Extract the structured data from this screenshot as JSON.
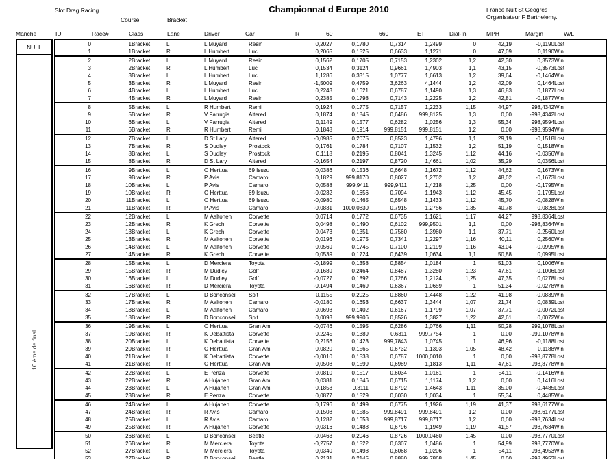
{
  "header": {
    "app_title": "Slot Drag Racing",
    "course_label": "Course",
    "bracket_label": "Bracket",
    "title": "Championnat d Europe 2010",
    "event_location": "France Nuit St Geogres",
    "organiser": "Organisateur F Barthelemy."
  },
  "manche": {
    "header": "Manche",
    "null_label": "NULL",
    "round_label": "16 ème de final"
  },
  "table": {
    "headers": [
      "ID",
      "Race#",
      "Class",
      "Lane",
      "Driver",
      "Car",
      "RT",
      "60",
      "660",
      "ET",
      "Dial-In",
      "MPH",
      "Margin",
      "W/L"
    ],
    "groups": [
      [
        [
          "0",
          "1",
          "Bracket",
          "L",
          "L Muyard",
          "Resin",
          "0,2027",
          "0,1780",
          "0,7314",
          "1,2499",
          "0",
          "42,19",
          "-0,1190",
          "Lost"
        ],
        [
          "1",
          "1",
          "Bracket",
          "R",
          "L Humbert",
          "Luc",
          "0,2065",
          "0,1525",
          "0,6633",
          "1,1271",
          "0",
          "47,09",
          "0,1190",
          "Win"
        ]
      ],
      [
        [
          "2",
          "2",
          "Bracket",
          "L",
          "L Muyard",
          "Resin",
          "0,1562",
          "0,1705",
          "0,7153",
          "1,2302",
          "1,2",
          "42,30",
          "0,3573",
          "Win"
        ],
        [
          "3",
          "2",
          "Bracket",
          "R",
          "L Humbert",
          "Luc",
          "0,1534",
          "0,3124",
          "0,9661",
          "1,4903",
          "1,1",
          "43,15",
          "-0,3573",
          "Lost"
        ],
        [
          "4",
          "3",
          "Bracket",
          "L",
          "L Humbert",
          "Luc",
          "1,1286",
          "0,3315",
          "1,0777",
          "1,6613",
          "1,2",
          "39,64",
          "-0,1464",
          "Win"
        ],
        [
          "5",
          "3",
          "Bracket",
          "R",
          "L Muyard",
          "Resin",
          "-1,5009",
          "0,4759",
          "3,6263",
          "4,1444",
          "1,2",
          "42,09",
          "0,1464",
          "Lost"
        ],
        [
          "6",
          "4",
          "Bracket",
          "L",
          "L Humbert",
          "Luc",
          "0,2243",
          "0,1621",
          "0,6787",
          "1,1490",
          "1,3",
          "46,83",
          "0,1877",
          "Lost"
        ],
        [
          "7",
          "4",
          "Bracket",
          "R",
          "L Muyard",
          "Resin",
          "0,2385",
          "0,1798",
          "0,7143",
          "1,2225",
          "1,2",
          "42,81",
          "-0,1877",
          "Win"
        ]
      ],
      [
        [
          "8",
          "5",
          "Bracket",
          "L",
          "R Humbert",
          "Remi",
          "0,1924",
          "0,1775",
          "0,7157",
          "1,2233",
          "1,15",
          "44,97",
          "998,4342",
          "Win"
        ],
        [
          "9",
          "5",
          "Bracket",
          "R",
          "V Farrugia",
          "Altered",
          "0,1874",
          "0,1845",
          "0,6486",
          "999,8125",
          "1,3",
          "0,00",
          "-998,4342",
          "Lost"
        ],
        [
          "10",
          "6",
          "Bracket",
          "L",
          "V Farrugia",
          "Altered",
          "0,1149",
          "0,1577",
          "0,6282",
          "1,0256",
          "1,3",
          "55,34",
          "998,9594",
          "Lost"
        ],
        [
          "11",
          "6",
          "Bracket",
          "R",
          "R Humbert",
          "Remi",
          "0,1848",
          "0,1914",
          "999,8151",
          "999,8151",
          "1,2",
          "0,00",
          "-998,9594",
          "Win"
        ]
      ],
      [
        [
          "12",
          "7",
          "Bracket",
          "L",
          "D St Lary",
          "Altered",
          "-0,0985",
          "0,2075",
          "0,8523",
          "1,4796",
          "1,1",
          "29,19",
          "-0,1518",
          "Lost"
        ],
        [
          "13",
          "7",
          "Bracket",
          "R",
          "S Dudley",
          "Prostock",
          "0,1761",
          "0,1784",
          "0,7107",
          "1,1532",
          "1,2",
          "51,19",
          "0,1518",
          "Win"
        ],
        [
          "14",
          "8",
          "Bracket",
          "L",
          "S Dudley",
          "Prostock",
          "0,1118",
          "0,2195",
          "0,8041",
          "1,3245",
          "1,12",
          "44,16",
          "-0,0356",
          "Win"
        ],
        [
          "15",
          "8",
          "Bracket",
          "R",
          "D St Lary",
          "Altered",
          "-0,1654",
          "0,2197",
          "0,8720",
          "1,4661",
          "1,02",
          "35,29",
          "0,0356",
          "Lost"
        ]
      ],
      [
        [
          "16",
          "9",
          "Bracket",
          "L",
          "O Herttua",
          "69 Isuzu",
          "0,0386",
          "0,1536",
          "0,6648",
          "1,1672",
          "1,12",
          "44,62",
          "0,1673",
          "Win"
        ],
        [
          "17",
          "9",
          "Bracket",
          "R",
          "P Avis",
          "Camaro",
          "0,1829",
          "999,8170",
          "0,8027",
          "1,2702",
          "1,2",
          "48,02",
          "-0,1673",
          "Lost"
        ],
        [
          "18",
          "10",
          "Bracket",
          "L",
          "P Avis",
          "Camaro",
          "0,0588",
          "999,9411",
          "999,9411",
          "1,4218",
          "1,25",
          "0,00",
          "-0,1795",
          "Win"
        ],
        [
          "19",
          "10",
          "Bracket",
          "R",
          "O Herttua",
          "69 Isuzu",
          "-0,0232",
          "0,1656",
          "0,7094",
          "1,1943",
          "1,12",
          "45,45",
          "0,1795",
          "Lost"
        ],
        [
          "20",
          "11",
          "Bracket",
          "L",
          "O Herttua",
          "69 Isuzu",
          "-0,0980",
          "0,1465",
          "0,6548",
          "1,1433",
          "1,12",
          "45,70",
          "-0,0828",
          "Win"
        ],
        [
          "21",
          "11",
          "Bracket",
          "R",
          "P Avis",
          "Camaro",
          "-0,0831",
          "1000,0830",
          "0,7915",
          "1,2756",
          "1,35",
          "40,78",
          "0,0828",
          "Lost"
        ]
      ],
      [
        [
          "22",
          "12",
          "Bracket",
          "L",
          "M Aaltonen",
          "Corvette",
          "0,0714",
          "0,1772",
          "0,6735",
          "1,1621",
          "1,17",
          "44,27",
          "998,8364",
          "Lost"
        ],
        [
          "23",
          "12",
          "Bracket",
          "R",
          "K Grech",
          "Corvette",
          "0,0498",
          "0,1490",
          "0,6102",
          "999,9501",
          "1,1",
          "0,00",
          "-998,8364",
          "Win"
        ],
        [
          "24",
          "13",
          "Bracket",
          "L",
          "K Grech",
          "Corvette",
          "0,0473",
          "0,1351",
          "0,7560",
          "1,3980",
          "1,1",
          "37,71",
          "-0,2560",
          "Lost"
        ],
        [
          "25",
          "13",
          "Bracket",
          "R",
          "M Aaltonen",
          "Corvette",
          "0,0196",
          "0,1975",
          "0,7341",
          "1,2297",
          "1,16",
          "40,11",
          "0,2560",
          "Win"
        ],
        [
          "26",
          "14",
          "Bracket",
          "L",
          "M Aaltonen",
          "Corvette",
          "0,0569",
          "0,1745",
          "0,7100",
          "1,2199",
          "1,16",
          "43,04",
          "-0,0995",
          "Win"
        ],
        [
          "27",
          "14",
          "Bracket",
          "R",
          "K Grech",
          "Corvette",
          "0,0539",
          "0,1724",
          "0,6439",
          "1,0634",
          "1,1",
          "50,88",
          "0,0995",
          "Lost"
        ]
      ],
      [
        [
          "28",
          "15",
          "Bracket",
          "L",
          "D Merciera",
          "Toyota",
          "-0,1899",
          "0,1358",
          "0,5854",
          "1,0184",
          "1",
          "51,03",
          "0,1006",
          "Win"
        ],
        [
          "29",
          "15",
          "Bracket",
          "R",
          "M Dudley",
          "Golf",
          "-0,1689",
          "0,2464",
          "0,8487",
          "1,3280",
          "1,23",
          "47,61",
          "-0,1006",
          "Lost"
        ],
        [
          "30",
          "16",
          "Bracket",
          "L",
          "M Dudley",
          "Golf",
          "-0,0727",
          "0,1892",
          "0,7266",
          "1,2124",
          "1,25",
          "47,35",
          "0,0278",
          "Lost"
        ],
        [
          "31",
          "16",
          "Bracket",
          "R",
          "D Merciera",
          "Toyota",
          "-0,1494",
          "0,1469",
          "0,6367",
          "1,0659",
          "1",
          "51,34",
          "-0,0278",
          "Win"
        ]
      ],
      [
        [
          "32",
          "17",
          "Bracket",
          "L",
          "D Bonconseil",
          "Spit",
          "0,1155",
          "0,2025",
          "0,8860",
          "1,4448",
          "1,22",
          "41,98",
          "-0,0839",
          "Win"
        ],
        [
          "33",
          "17",
          "Bracket",
          "R",
          "M Aaltonen",
          "Camaro",
          "-0,0180",
          "0,1653",
          "0,6637",
          "1,3444",
          "1,07",
          "21,74",
          "0,0839",
          "Lost"
        ],
        [
          "34",
          "18",
          "Bracket",
          "L",
          "M Aaltonen",
          "Camaro",
          "0,0693",
          "0,1402",
          "0,6167",
          "1,1799",
          "1,07",
          "37,71",
          "-0,0072",
          "Lost"
        ],
        [
          "35",
          "18",
          "Bracket",
          "R",
          "D Bonconseil",
          "Spit",
          "0,0093",
          "999,9906",
          "0,8526",
          "1,3827",
          "1,22",
          "42,61",
          "0,0072",
          "Win"
        ]
      ],
      [
        [
          "36",
          "19",
          "Bracket",
          "L",
          "O Herttua",
          "Gran Am",
          "-0,0746",
          "0,1595",
          "0,6286",
          "1,0766",
          "1,11",
          "50,28",
          "999,1078",
          "Lost"
        ],
        [
          "37",
          "19",
          "Bracket",
          "R",
          "K Debattista",
          "Corvette",
          "0,2245",
          "0,1389",
          "0,6311",
          "999,7754",
          "1",
          "0,00",
          "-999,1078",
          "Win"
        ],
        [
          "38",
          "20",
          "Bracket",
          "L",
          "K Debattista",
          "Corvette",
          "0,2156",
          "0,1423",
          "999,7843",
          "1,0745",
          "1",
          "46,96",
          "-0,1188",
          "Lost"
        ],
        [
          "39",
          "20",
          "Bracket",
          "R",
          "O Herttua",
          "Gran Am",
          "0,0820",
          "0,1565",
          "0,6732",
          "1,1393",
          "1,05",
          "48,42",
          "0,1188",
          "Win"
        ],
        [
          "40",
          "21",
          "Bracket",
          "L",
          "K Debattista",
          "Corvette",
          "-0,0010",
          "0,1538",
          "0,6787",
          "1000,0010",
          "1",
          "0,00",
          "-998,8778",
          "Lost"
        ],
        [
          "41",
          "21",
          "Bracket",
          "R",
          "O Herttua",
          "Gran Am",
          "0,0508",
          "0,1599",
          "0,6989",
          "1,1813",
          "1,11",
          "47,61",
          "998,8778",
          "Win"
        ]
      ],
      [
        [
          "42",
          "22",
          "Bracket",
          "L",
          "E Penza",
          "Corvette",
          "0,0810",
          "0,1517",
          "0,6034",
          "1,0161",
          "1",
          "54,11",
          "-0,1416",
          "Win"
        ],
        [
          "43",
          "22",
          "Bracket",
          "R",
          "A Hujanen",
          "Gran Am",
          "0,0381",
          "0,1846",
          "0,6715",
          "1,1174",
          "1,2",
          "0,00",
          "0,1416",
          "Lost"
        ],
        [
          "44",
          "23",
          "Bracket",
          "L",
          "A Hujanen",
          "Gran Am",
          "0,1853",
          "0,3111",
          "0,8792",
          "1,4643",
          "1,11",
          "35,00",
          "-0,4485",
          "Lost"
        ],
        [
          "45",
          "23",
          "Bracket",
          "R",
          "E Penza",
          "Corvette",
          "0,0877",
          "0,1529",
          "0,6030",
          "1,0034",
          "1",
          "55,34",
          "0,4485",
          "Win"
        ]
      ],
      [
        [
          "46",
          "24",
          "Bracket",
          "L",
          "A Hujanen",
          "Corvette",
          "0,1796",
          "0,1499",
          "0,6775",
          "1,1926",
          "1,19",
          "41,37",
          "998,6177",
          "Win"
        ],
        [
          "47",
          "24",
          "Bracket",
          "R",
          "R Avis",
          "Camaro",
          "0,1508",
          "0,1585",
          "999,8491",
          "999,8491",
          "1,2",
          "0,00",
          "-998,6177",
          "Lost"
        ],
        [
          "48",
          "25",
          "Bracket",
          "L",
          "R Avis",
          "Camaro",
          "0,1282",
          "0,1653",
          "999,8717",
          "999,8717",
          "1,2",
          "0,00",
          "-998,7634",
          "Lost"
        ],
        [
          "49",
          "25",
          "Bracket",
          "R",
          "A Hujanen",
          "Corvette",
          "0,0316",
          "0,1488",
          "0,6796",
          "1,1949",
          "1,19",
          "41,57",
          "998,7634",
          "Win"
        ]
      ],
      [
        [
          "50",
          "26",
          "Bracket",
          "L",
          "D Bonconseil",
          "Beetle",
          "-0,0463",
          "0,2046",
          "0,8726",
          "1000,0460",
          "1,45",
          "0,00",
          "-998,7770",
          "Lost"
        ],
        [
          "51",
          "26",
          "Bracket",
          "R",
          "M Merciera",
          "Toyota",
          "-0,2757",
          "0,1522",
          "0,6307",
          "1,0486",
          "1",
          "54,99",
          "998,7770",
          "Win"
        ],
        [
          "52",
          "27",
          "Bracket",
          "L",
          "M Merciera",
          "Toyota",
          "0,0340",
          "0,1498",
          "0,6068",
          "1,0206",
          "1",
          "54,11",
          "998,4953",
          "Win"
        ],
        [
          "53",
          "27",
          "Bracket",
          "R",
          "D Bonconseil",
          "Beetle",
          "0,2131",
          "0,2145",
          "0,8880",
          "999,7868",
          "1,45",
          "0,00",
          "-998,4953",
          "Lost"
        ]
      ]
    ]
  }
}
